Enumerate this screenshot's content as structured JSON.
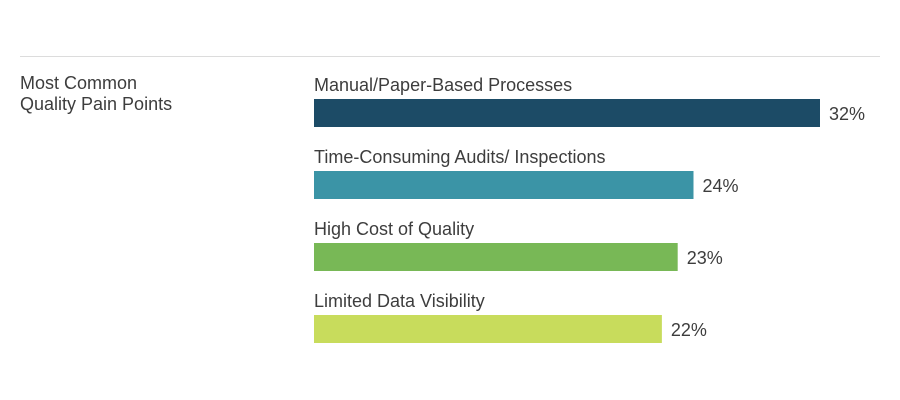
{
  "heading": {
    "line1": "Most Common",
    "line2": "Quality Pain Points"
  },
  "chart_data": {
    "type": "bar",
    "orientation": "horizontal",
    "categories": [
      "Manual/Paper-Based Processes",
      "Time-Consuming Audits/ Inspections",
      "High Cost of Quality",
      "Limited Data Visibility"
    ],
    "values": [
      32,
      24,
      23,
      22
    ],
    "value_labels": [
      "32%",
      "24%",
      "23%",
      "22%"
    ],
    "colors": [
      "#1c4b66",
      "#3b94a6",
      "#78b856",
      "#c8dc5c"
    ],
    "unit": "%",
    "xlim": [
      0,
      32
    ],
    "grid": false,
    "legend": "none"
  }
}
